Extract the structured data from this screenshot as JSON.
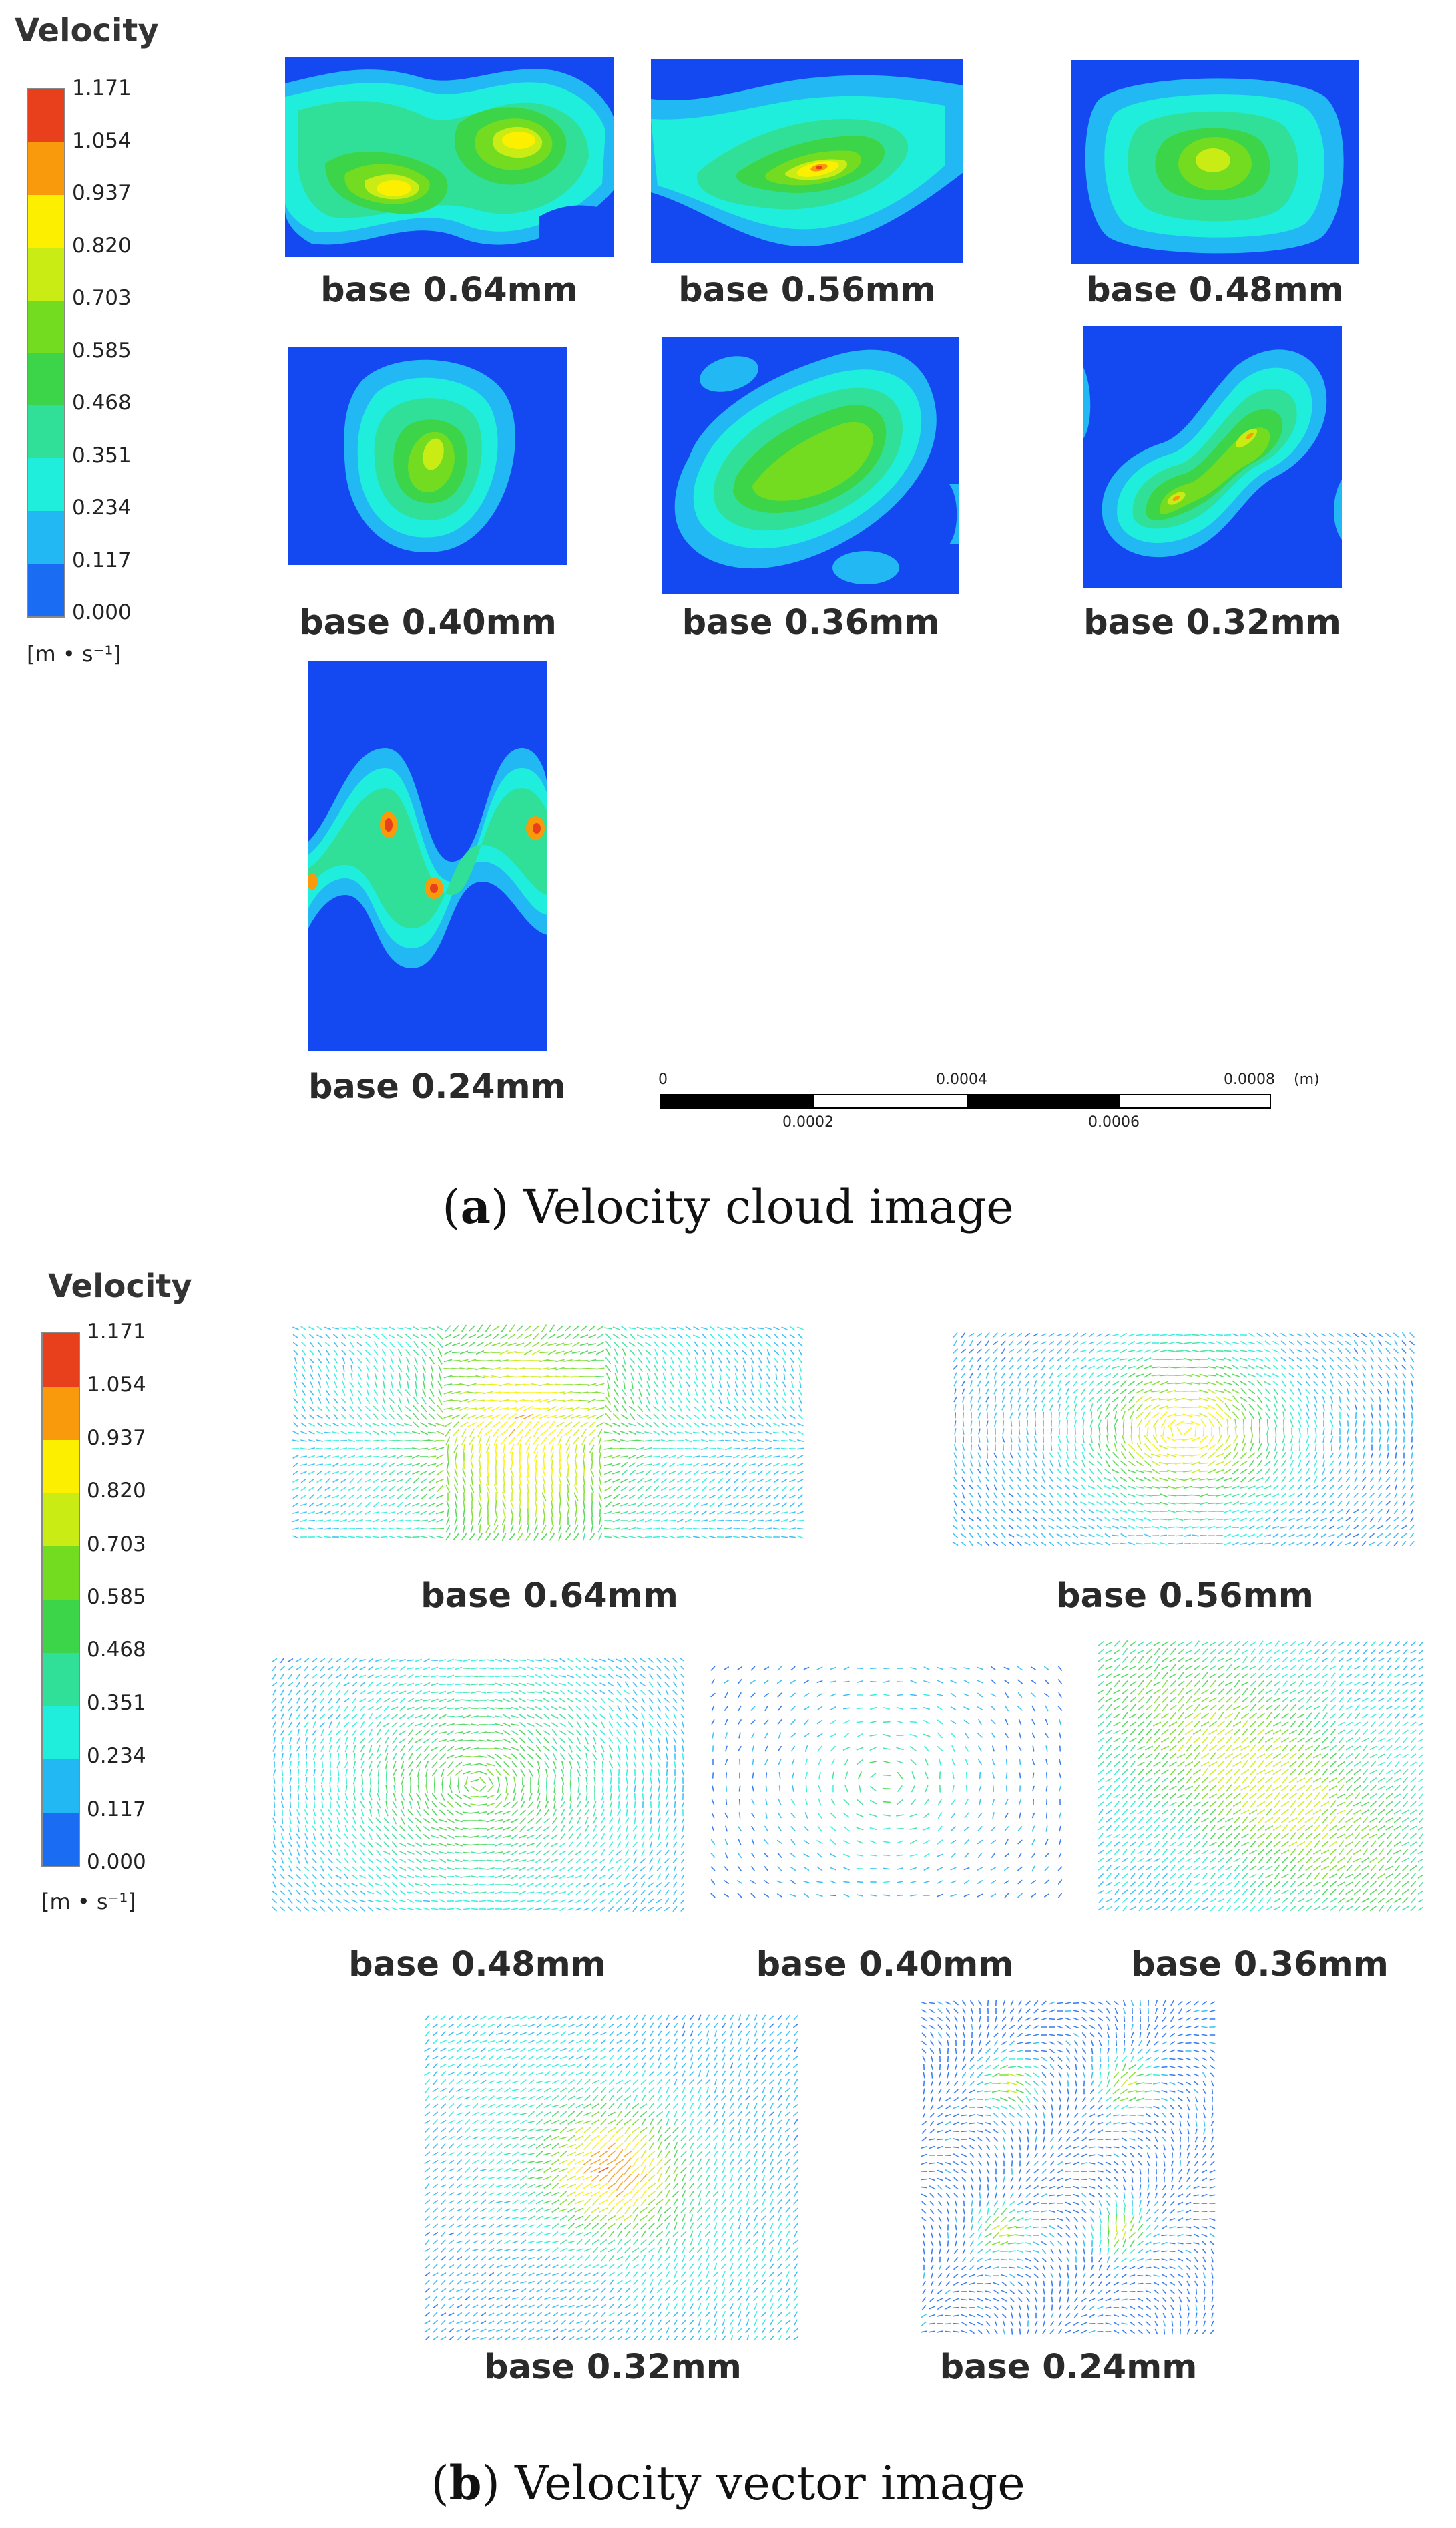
{
  "section_a": {
    "legend": {
      "title": "Velocity",
      "ticks": [
        "1.171",
        "1.054",
        "0.937",
        "0.820",
        "0.703",
        "0.585",
        "0.468",
        "0.351",
        "0.234",
        "0.117",
        "0.000"
      ],
      "unit": "[m • s⁻¹]"
    },
    "panels": [
      {
        "label": "base 0.64mm"
      },
      {
        "label": "base 0.56mm"
      },
      {
        "label": "base 0.48mm"
      },
      {
        "label": "base 0.40mm"
      },
      {
        "label": "base 0.36mm"
      },
      {
        "label": "base 0.32mm"
      },
      {
        "label": "base 0.24mm"
      }
    ],
    "scale_bar": {
      "top_ticks": [
        "0",
        "0.0004",
        "0.0008"
      ],
      "bottom_ticks": [
        "0.0002",
        "0.0006"
      ],
      "unit": "(m)"
    },
    "caption_letter": "(a)",
    "caption_text": "Velocity cloud image"
  },
  "section_b": {
    "legend": {
      "title": "Velocity",
      "ticks": [
        "1.171",
        "1.054",
        "0.937",
        "0.820",
        "0.703",
        "0.585",
        "0.468",
        "0.351",
        "0.234",
        "0.117",
        "0.000"
      ],
      "unit": "[m • s⁻¹]"
    },
    "panels": [
      {
        "label": "base 0.64mm"
      },
      {
        "label": "base 0.56mm"
      },
      {
        "label": "base 0.48mm"
      },
      {
        "label": "base 0.40mm"
      },
      {
        "label": "base 0.36mm"
      },
      {
        "label": "base 0.32mm"
      },
      {
        "label": "base 0.24mm"
      }
    ],
    "caption_letter": "(b)",
    "caption_text": "Velocity vector image"
  },
  "colors": {
    "colormap": [
      "#e8401c",
      "#f89a0c",
      "#fcf000",
      "#c8ec14",
      "#74dc20",
      "#3cd448",
      "#30e098",
      "#20eedc",
      "#22b8f4",
      "#1a6cf2",
      "#1240f0"
    ],
    "field_background": "#1448f0"
  }
}
